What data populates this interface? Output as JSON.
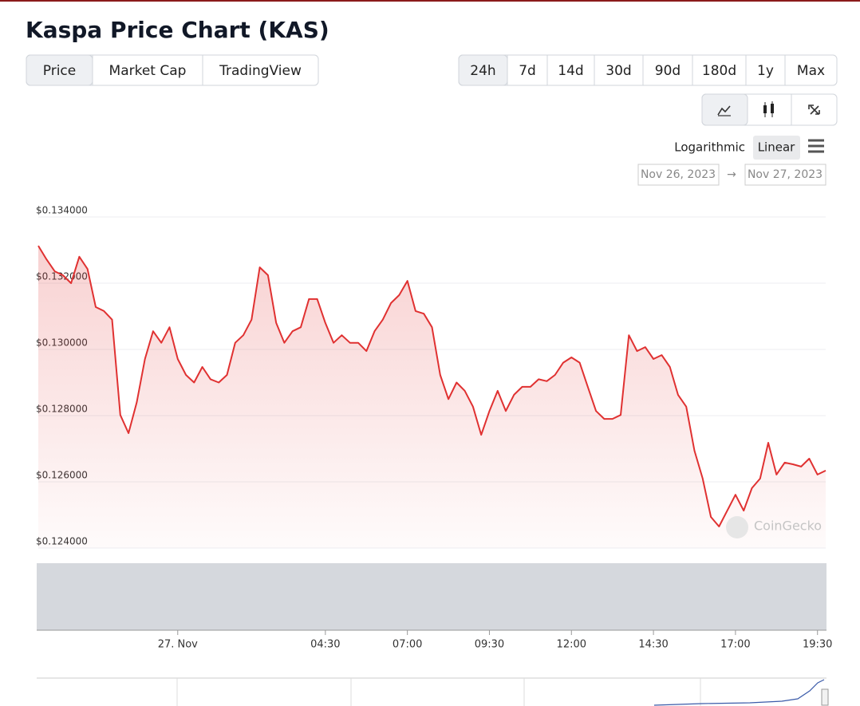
{
  "header": {
    "title": "Kaspa Price Chart (KAS)"
  },
  "tabs": [
    "Price",
    "Market Cap",
    "TradingView"
  ],
  "ranges": [
    "24h",
    "7d",
    "14d",
    "30d",
    "90d",
    "180d",
    "1y",
    "Max"
  ],
  "scale_options": [
    "Logarithmic",
    "Linear"
  ],
  "date_from": "Nov 26, 2023",
  "date_arrow": "→",
  "date_to": "Nov 27, 2023",
  "watermark": "CoinGecko",
  "chart_data": {
    "type": "line",
    "color": "#e03131",
    "grid": true,
    "categories": [
      "",
      "",
      "",
      "",
      "",
      "",
      "",
      "",
      "",
      "",
      "",
      "",
      "",
      "",
      "",
      "",
      "",
      "27. Nov",
      "",
      "",
      "",
      "",
      "",
      "",
      "",
      "",
      "",
      "",
      "",
      "",
      "",
      "",
      "",
      "",
      "",
      "04:30",
      "",
      "",
      "",
      "",
      "",
      "",
      "",
      "",
      "",
      "07:00",
      "",
      "",
      "",
      "",
      "",
      "",
      "",
      "",
      "",
      "09:30",
      "",
      "",
      "",
      "",
      "",
      "",
      "",
      "",
      "",
      "12:00",
      "",
      "",
      "",
      "",
      "",
      "",
      "",
      "",
      "",
      "14:30",
      "",
      "",
      "",
      "",
      "",
      "",
      "",
      "",
      "",
      "17:00",
      "",
      "",
      "",
      "",
      "",
      "",
      "",
      "",
      "",
      "19:30",
      ""
    ],
    "values": [
      0.13313,
      0.13272,
      0.13236,
      0.13224,
      0.132,
      0.1328,
      0.13243,
      0.13128,
      0.13116,
      0.1309,
      0.12802,
      0.12747,
      0.1284,
      0.12971,
      0.13055,
      0.1302,
      0.13067,
      0.12971,
      0.12923,
      0.129,
      0.12947,
      0.1291,
      0.129,
      0.12923,
      0.1302,
      0.13043,
      0.1309,
      0.13248,
      0.13224,
      0.1308,
      0.1302,
      0.13055,
      0.13067,
      0.13152,
      0.13152,
      0.1308,
      0.1302,
      0.13043,
      0.1302,
      0.1302,
      0.12995,
      0.13055,
      0.1309,
      0.1314,
      0.13164,
      0.13207,
      0.13116,
      0.13108,
      0.13067,
      0.12923,
      0.1285,
      0.129,
      0.12875,
      0.12827,
      0.12742,
      0.12814,
      0.12875,
      0.12814,
      0.12863,
      0.12887,
      0.12887,
      0.1291,
      0.12904,
      0.12923,
      0.1296,
      0.12976,
      0.1296,
      0.12887,
      0.12814,
      0.1279,
      0.1279,
      0.12802,
      0.13043,
      0.12995,
      0.13007,
      0.12971,
      0.12983,
      0.12947,
      0.12863,
      0.12827,
      0.12694,
      0.1261,
      0.12494,
      0.12465,
      0.12513,
      0.12561,
      0.12513,
      0.12581,
      0.1261,
      0.12718,
      0.12622,
      0.12658,
      0.12653,
      0.12646,
      0.1267,
      0.12622,
      0.12634
    ],
    "ylim": [
      0.124,
      0.134
    ],
    "yticks": [
      {
        "value": 0.124,
        "label": "$0.124000"
      },
      {
        "value": 0.126,
        "label": "$0.126000"
      },
      {
        "value": 0.128,
        "label": "$0.128000"
      },
      {
        "value": 0.13,
        "label": "$0.130000"
      },
      {
        "value": 0.132,
        "label": "$0.132000"
      },
      {
        "value": 0.134,
        "label": "$0.134000"
      }
    ]
  }
}
